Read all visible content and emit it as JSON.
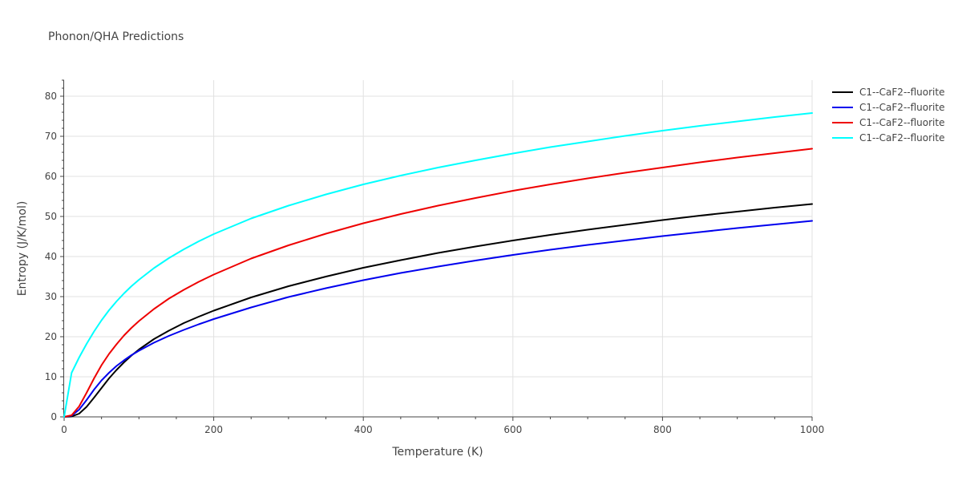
{
  "chart_data": {
    "type": "line",
    "title": "Phonon/QHA Predictions",
    "xlabel": "Temperature (K)",
    "ylabel": "Entropy (J/K/mol)",
    "xlim": [
      0,
      1000
    ],
    "ylim": [
      0,
      84
    ],
    "x_ticks": [
      0,
      200,
      400,
      600,
      800,
      1000
    ],
    "y_ticks": [
      0,
      10,
      20,
      30,
      40,
      50,
      60,
      70,
      80
    ],
    "x_tick_labels": [
      "0",
      "200",
      "400",
      "600",
      "800",
      "1000"
    ],
    "y_tick_labels": [
      "0",
      "10",
      "20",
      "30",
      "40",
      "50",
      "60",
      "70",
      "80"
    ],
    "grid": true,
    "legend_position": "top-right outside",
    "series": [
      {
        "name": "C1--CaF2--fluorite",
        "color": "#000000",
        "points": [
          [
            0,
            0
          ],
          [
            10,
            0.1
          ],
          [
            20,
            0.8
          ],
          [
            30,
            2.5
          ],
          [
            40,
            4.8
          ],
          [
            50,
            7.2
          ],
          [
            60,
            9.6
          ],
          [
            70,
            11.7
          ],
          [
            80,
            13.6
          ],
          [
            90,
            15.3
          ],
          [
            100,
            16.8
          ],
          [
            120,
            19.4
          ],
          [
            140,
            21.5
          ],
          [
            160,
            23.4
          ],
          [
            180,
            25.0
          ],
          [
            200,
            26.5
          ],
          [
            250,
            29.8
          ],
          [
            300,
            32.6
          ],
          [
            350,
            35.0
          ],
          [
            400,
            37.2
          ],
          [
            450,
            39.1
          ],
          [
            500,
            40.9
          ],
          [
            550,
            42.5
          ],
          [
            600,
            44.0
          ],
          [
            650,
            45.4
          ],
          [
            700,
            46.7
          ],
          [
            750,
            47.9
          ],
          [
            800,
            49.1
          ],
          [
            850,
            50.2
          ],
          [
            900,
            51.2
          ],
          [
            950,
            52.2
          ],
          [
            1000,
            53.1
          ]
        ]
      },
      {
        "name": "C1--CaF2--fluorite",
        "color": "#0000ee",
        "points": [
          [
            0,
            0
          ],
          [
            10,
            0.3
          ],
          [
            20,
            1.8
          ],
          [
            30,
            4.2
          ],
          [
            40,
            6.8
          ],
          [
            50,
            9.1
          ],
          [
            60,
            11.0
          ],
          [
            70,
            12.7
          ],
          [
            80,
            14.1
          ],
          [
            90,
            15.4
          ],
          [
            100,
            16.5
          ],
          [
            120,
            18.5
          ],
          [
            140,
            20.2
          ],
          [
            160,
            21.7
          ],
          [
            180,
            23.1
          ],
          [
            200,
            24.4
          ],
          [
            250,
            27.3
          ],
          [
            300,
            29.9
          ],
          [
            350,
            32.1
          ],
          [
            400,
            34.1
          ],
          [
            450,
            35.9
          ],
          [
            500,
            37.5
          ],
          [
            550,
            39.0
          ],
          [
            600,
            40.4
          ],
          [
            650,
            41.7
          ],
          [
            700,
            42.9
          ],
          [
            750,
            44.0
          ],
          [
            800,
            45.1
          ],
          [
            850,
            46.1
          ],
          [
            900,
            47.1
          ],
          [
            950,
            48.0
          ],
          [
            1000,
            48.9
          ]
        ]
      },
      {
        "name": "C1--CaF2--fluorite",
        "color": "#ee0000",
        "points": [
          [
            0,
            0
          ],
          [
            10,
            0.4
          ],
          [
            20,
            2.6
          ],
          [
            30,
            6.0
          ],
          [
            40,
            9.6
          ],
          [
            50,
            12.9
          ],
          [
            60,
            15.7
          ],
          [
            70,
            18.1
          ],
          [
            80,
            20.3
          ],
          [
            90,
            22.2
          ],
          [
            100,
            23.9
          ],
          [
            120,
            26.9
          ],
          [
            140,
            29.5
          ],
          [
            160,
            31.7
          ],
          [
            180,
            33.7
          ],
          [
            200,
            35.5
          ],
          [
            250,
            39.5
          ],
          [
            300,
            42.8
          ],
          [
            350,
            45.7
          ],
          [
            400,
            48.3
          ],
          [
            450,
            50.6
          ],
          [
            500,
            52.7
          ],
          [
            550,
            54.6
          ],
          [
            600,
            56.4
          ],
          [
            650,
            58.0
          ],
          [
            700,
            59.5
          ],
          [
            750,
            60.9
          ],
          [
            800,
            62.2
          ],
          [
            850,
            63.5
          ],
          [
            900,
            64.7
          ],
          [
            950,
            65.8
          ],
          [
            1000,
            66.9
          ]
        ]
      },
      {
        "name": "C1--CaF2--fluorite",
        "color": "#00ffff",
        "points": [
          [
            0,
            0
          ],
          [
            10,
            11.0
          ],
          [
            20,
            14.8
          ],
          [
            30,
            18.2
          ],
          [
            40,
            21.3
          ],
          [
            50,
            24.1
          ],
          [
            60,
            26.6
          ],
          [
            70,
            28.8
          ],
          [
            80,
            30.8
          ],
          [
            90,
            32.6
          ],
          [
            100,
            34.2
          ],
          [
            120,
            37.1
          ],
          [
            140,
            39.6
          ],
          [
            160,
            41.8
          ],
          [
            180,
            43.8
          ],
          [
            200,
            45.6
          ],
          [
            250,
            49.5
          ],
          [
            300,
            52.7
          ],
          [
            350,
            55.5
          ],
          [
            400,
            58.0
          ],
          [
            450,
            60.2
          ],
          [
            500,
            62.2
          ],
          [
            550,
            64.0
          ],
          [
            600,
            65.7
          ],
          [
            650,
            67.3
          ],
          [
            700,
            68.7
          ],
          [
            750,
            70.1
          ],
          [
            800,
            71.4
          ],
          [
            850,
            72.6
          ],
          [
            900,
            73.7
          ],
          [
            950,
            74.8
          ],
          [
            1000,
            75.8
          ]
        ]
      }
    ]
  }
}
